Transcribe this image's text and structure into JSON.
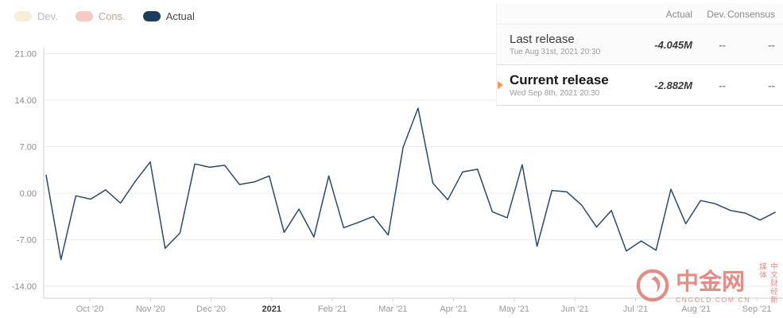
{
  "legend": {
    "items": [
      {
        "label": "Dev.",
        "color": "#f7eed7",
        "text_color": "#bdbdbd"
      },
      {
        "label": "Cons.",
        "color": "#f6cbc6",
        "text_color": "#c9a09b"
      },
      {
        "label": "Actual",
        "color": "#1d3c5e",
        "text_color": "#444444"
      }
    ]
  },
  "panel": {
    "columns": [
      "Actual",
      "Dev.",
      "Consensus"
    ],
    "rows": [
      {
        "title": "Last release",
        "date": "Tue Aug 31st, 2021 20:30",
        "actual": "-4.045M",
        "dev": "--",
        "consensus": "--"
      },
      {
        "title": "Current release",
        "date": "Wed Sep 8th, 2021 20:30",
        "actual": "-2.882M",
        "dev": "--",
        "consensus": "--"
      }
    ],
    "arrow_color": "#f09a5e"
  },
  "watermark": {
    "brand": "中金网",
    "domain": "CNGOLD.COM.CN",
    "tagline": "中文财经新媒体",
    "color": "#de7a70"
  },
  "chart_data": {
    "type": "line",
    "title": "",
    "xlabel": "",
    "ylabel": "",
    "ylim": [
      -15.8,
      21.9
    ],
    "grid": "horizontal",
    "legend_position": "top-left",
    "y_ticks": {
      "labels": [
        "21.00",
        "14.00",
        "7.00",
        "0.00",
        "-7.00",
        "-14.00"
      ],
      "values": [
        21,
        14,
        7,
        0,
        -7,
        -14
      ]
    },
    "x_ticks": [
      {
        "label": "Oct '20",
        "bold": false
      },
      {
        "label": "Nov '20",
        "bold": false
      },
      {
        "label": "Dec '20",
        "bold": false
      },
      {
        "label": "2021",
        "bold": true
      },
      {
        "label": "Feb '21",
        "bold": false
      },
      {
        "label": "Mar '21",
        "bold": false
      },
      {
        "label": "Apr '21",
        "bold": false
      },
      {
        "label": "May '21",
        "bold": false
      },
      {
        "label": "Jun '21",
        "bold": false
      },
      {
        "label": "Jul '21",
        "bold": false
      },
      {
        "label": "Aug '21",
        "bold": false
      },
      {
        "label": "Sep '21",
        "bold": false
      }
    ],
    "series": [
      {
        "name": "Actual",
        "color": "#2b4a68",
        "values": [
          2.7,
          -10.0,
          -0.4,
          -0.9,
          0.5,
          -1.5,
          1.8,
          4.7,
          -8.3,
          -6.0,
          4.4,
          3.9,
          4.2,
          1.3,
          1.7,
          2.6,
          -5.9,
          -2.4,
          -6.6,
          2.6,
          -5.2,
          -4.4,
          -3.5,
          -6.3,
          6.9,
          12.8,
          1.5,
          -1.0,
          3.2,
          3.6,
          -2.8,
          -3.7,
          4.3,
          -8.0,
          0.4,
          0.2,
          -1.8,
          -5.1,
          -2.6,
          -8.7,
          -7.2,
          -8.6,
          0.6,
          -4.6,
          -1.1,
          -1.6,
          -2.6,
          -3.0,
          -4.045,
          -2.882
        ]
      }
    ],
    "last_release_value": -4.045,
    "current_release_value": -2.882
  }
}
